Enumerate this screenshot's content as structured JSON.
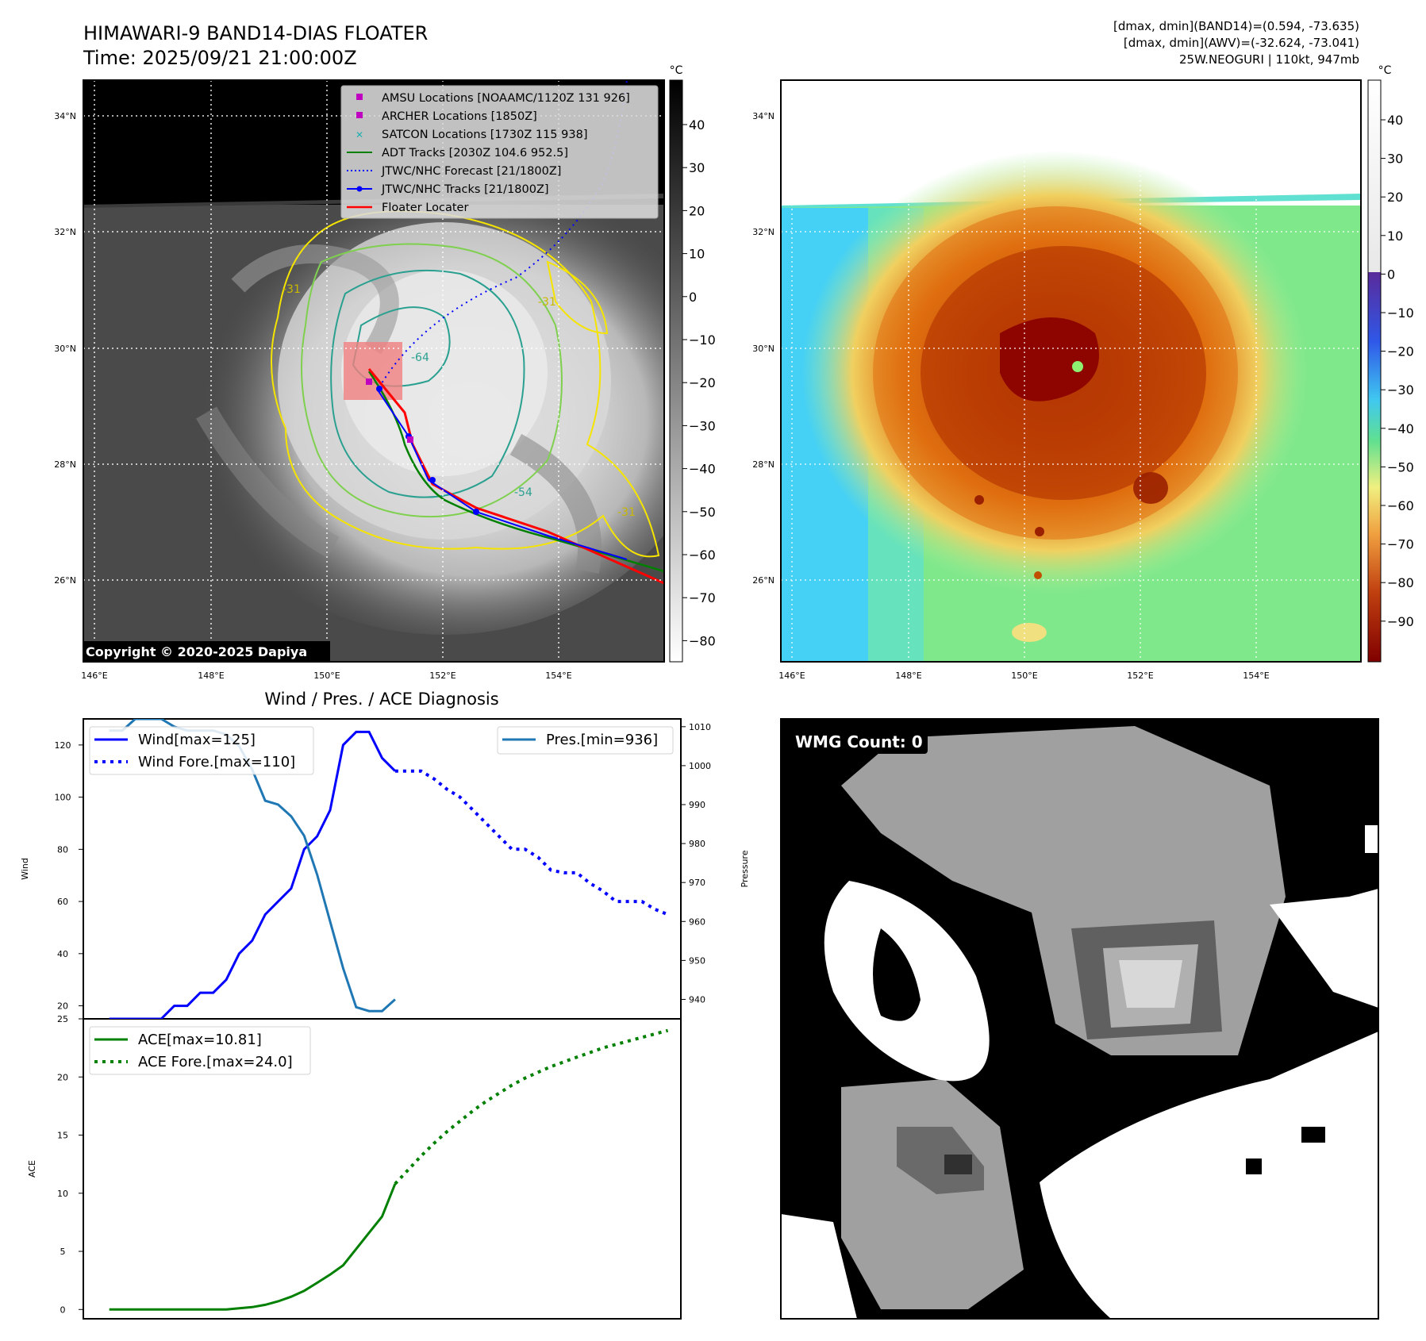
{
  "header": {
    "title": "HIMAWARI-9 BAND14-DIAS FLOATER",
    "time": "Time: 2025/09/21 21:00:00Z",
    "info": [
      "[dmax, dmin](BAND14)=(0.594, -73.635)",
      "[dmax, dmin](AWV)=(-32.624, -73.041)",
      "25W.NEOGURI | 110kt, 947mb"
    ]
  },
  "map_ir": {
    "lat_labels": [
      "34°N",
      "32°N",
      "30°N",
      "28°N",
      "26°N"
    ],
    "lon_labels": [
      "146°E",
      "148°E",
      "150°E",
      "152°E",
      "154°E"
    ],
    "colorbar_unit": "°C",
    "colorbar_ticks": [
      "40",
      "30",
      "20",
      "10",
      "0",
      "−10",
      "−20",
      "−30",
      "−40",
      "−50",
      "−60",
      "−70",
      "−80"
    ],
    "copyright": "Copyright © 2020-2025 Dapiya",
    "contour_labels": [
      "-31",
      "-31",
      "-64",
      "-54",
      "-31"
    ],
    "legend": [
      {
        "label": "AMSU Locations [NOAAMC/1120Z 131 926]",
        "color": "#c000c0",
        "marker": "square"
      },
      {
        "label": "ARCHER Locations [1850Z]",
        "color": "#c000c0",
        "marker": "square"
      },
      {
        "label": "SATCON Locations [1730Z 115 938]",
        "color": "#20b0b0",
        "marker": "x"
      },
      {
        "label": "ADT Tracks [2030Z 104.6 952.5]",
        "color": "#008000",
        "marker": "line"
      },
      {
        "label": "JTWC/NHC Forecast [21/1800Z]",
        "color": "#0000ff",
        "marker": "dotted"
      },
      {
        "label": "JTWC/NHC Tracks [21/1800Z]",
        "color": "#0000ff",
        "marker": "line-dot"
      },
      {
        "label": "Floater Locater",
        "color": "#ff0000",
        "marker": "line"
      }
    ]
  },
  "map_awv": {
    "lat_labels": [
      "34°N",
      "32°N",
      "30°N",
      "28°N",
      "26°N"
    ],
    "lon_labels": [
      "146°E",
      "148°E",
      "150°E",
      "152°E",
      "154°E"
    ],
    "colorbar_unit": "°C",
    "colorbar_ticks": [
      "40",
      "30",
      "20",
      "10",
      "0",
      "−10",
      "−20",
      "−30",
      "−40",
      "−50",
      "−60",
      "−70",
      "−80",
      "−90"
    ]
  },
  "diag": {
    "title": "Wind / Pres. / ACE Diagnosis"
  },
  "wmg": {
    "label": "WMG Count: 0"
  },
  "chart_data": [
    {
      "type": "line",
      "title": "Wind / Pres. / ACE Diagnosis",
      "ylabel": "Wind",
      "y2label": "Pressure",
      "ylim": [
        15,
        130
      ],
      "y2lim": [
        935,
        1012
      ],
      "yticks": [
        20,
        40,
        60,
        80,
        100,
        120
      ],
      "y2ticks": [
        940,
        950,
        960,
        970,
        980,
        990,
        1000,
        1010
      ],
      "series": [
        {
          "name": "Wind[max=125]",
          "axis": "left",
          "style": "solid",
          "color": "#0000ff",
          "x": [
            0,
            1,
            2,
            3,
            4,
            5,
            6,
            7,
            8,
            9,
            10,
            11,
            12,
            13,
            14,
            15,
            16,
            17,
            18,
            19,
            20,
            21,
            22
          ],
          "values": [
            15,
            15,
            15,
            15,
            15,
            20,
            20,
            25,
            25,
            30,
            40,
            45,
            55,
            60,
            65,
            80,
            85,
            95,
            120,
            125,
            125,
            115,
            110
          ]
        },
        {
          "name": "Wind Fore.[max=110]",
          "axis": "left",
          "style": "dotted",
          "color": "#0000ff",
          "x": [
            22,
            23,
            24,
            25,
            26,
            27,
            28,
            29,
            30,
            31,
            32,
            33,
            34,
            35,
            36,
            37,
            38,
            39,
            40,
            41,
            42,
            43
          ],
          "values": [
            110,
            110,
            110,
            107,
            103,
            100,
            95,
            90,
            85,
            80,
            80,
            77,
            72,
            71,
            71,
            67,
            64,
            60,
            60,
            60,
            57,
            55
          ]
        },
        {
          "name": "Pres.[min=936]",
          "axis": "right",
          "style": "solid",
          "color": "#1f77b4",
          "x": [
            0,
            1,
            2,
            3,
            4,
            5,
            6,
            7,
            8,
            9,
            10,
            11,
            12,
            13,
            14,
            15,
            16,
            17,
            18,
            19,
            20,
            21,
            22
          ],
          "values": [
            1009,
            1009,
            1012,
            1012,
            1012,
            1010,
            1009,
            1009,
            1009,
            1008,
            1005,
            999,
            991,
            990,
            987,
            982,
            972,
            960,
            948,
            938,
            937,
            937,
            940
          ]
        }
      ]
    },
    {
      "type": "line",
      "ylabel": "ACE",
      "ylim": [
        -0.8,
        25
      ],
      "yticks": [
        0,
        5,
        10,
        15,
        20,
        25
      ],
      "series": [
        {
          "name": "ACE[max=10.81]",
          "style": "solid",
          "color": "#008000",
          "x": [
            0,
            1,
            2,
            3,
            4,
            5,
            6,
            7,
            8,
            9,
            10,
            11,
            12,
            13,
            14,
            15,
            16,
            17,
            18,
            19,
            20,
            21,
            22
          ],
          "values": [
            0,
            0,
            0,
            0,
            0,
            0,
            0,
            0,
            0,
            0,
            0.1,
            0.2,
            0.4,
            0.7,
            1.1,
            1.6,
            2.3,
            3,
            3.8,
            5.2,
            6.6,
            8,
            10.81
          ]
        },
        {
          "name": "ACE Fore.[max=24.0]",
          "style": "dotted",
          "color": "#008000",
          "x": [
            22,
            23,
            24,
            25,
            26,
            27,
            28,
            29,
            30,
            31,
            32,
            33,
            34,
            35,
            36,
            37,
            38,
            39,
            40,
            41,
            42,
            43
          ],
          "values": [
            10.81,
            12,
            13.2,
            14.3,
            15.3,
            16.2,
            17.1,
            17.9,
            18.6,
            19.3,
            19.9,
            20.4,
            20.9,
            21.3,
            21.7,
            22.1,
            22.5,
            22.8,
            23.1,
            23.4,
            23.7,
            24.0
          ]
        }
      ]
    }
  ]
}
